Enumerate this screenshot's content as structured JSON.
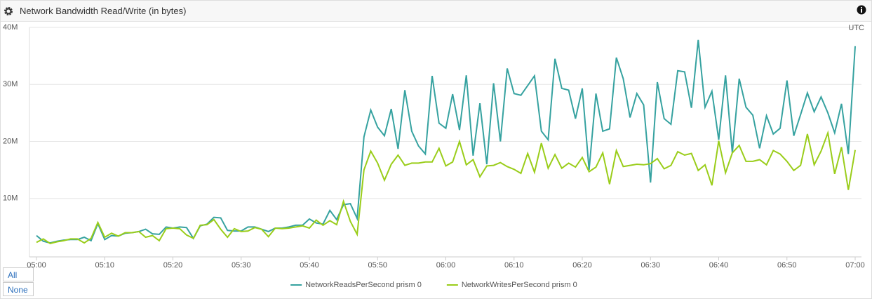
{
  "header": {
    "title": "Network Bandwidth Read/Write (in bytes)"
  },
  "buttons": [
    "All",
    "None"
  ],
  "chart_data": {
    "type": "line",
    "timezone": "UTC",
    "x": [
      "05:00",
      "05:01",
      "05:02",
      "05:03",
      "05:04",
      "05:05",
      "05:06",
      "05:07",
      "05:08",
      "05:09",
      "05:10",
      "05:11",
      "05:12",
      "05:13",
      "05:14",
      "05:15",
      "05:16",
      "05:17",
      "05:18",
      "05:19",
      "05:20",
      "05:21",
      "05:22",
      "05:23",
      "05:24",
      "05:25",
      "05:26",
      "05:27",
      "05:28",
      "05:29",
      "05:30",
      "05:31",
      "05:32",
      "05:33",
      "05:34",
      "05:35",
      "05:36",
      "05:37",
      "05:38",
      "05:39",
      "05:40",
      "05:41",
      "05:42",
      "05:43",
      "05:44",
      "05:45",
      "05:46",
      "05:47",
      "05:48",
      "05:49",
      "05:50",
      "05:51",
      "05:52",
      "05:53",
      "05:54",
      "05:55",
      "05:56",
      "05:57",
      "05:58",
      "05:59",
      "06:00",
      "06:01",
      "06:02",
      "06:03",
      "06:04",
      "06:05",
      "06:06",
      "06:07",
      "06:08",
      "06:09",
      "06:10",
      "06:11",
      "06:12",
      "06:13",
      "06:14",
      "06:15",
      "06:16",
      "06:17",
      "06:18",
      "06:19",
      "06:20",
      "06:21",
      "06:22",
      "06:23",
      "06:24",
      "06:25",
      "06:26",
      "06:27",
      "06:28",
      "06:29",
      "06:30",
      "06:31",
      "06:32",
      "06:33",
      "06:34",
      "06:35",
      "06:36",
      "06:37",
      "06:38",
      "06:39",
      "06:40",
      "06:41",
      "06:42",
      "06:43",
      "06:44",
      "06:45",
      "06:46",
      "06:47",
      "06:48",
      "06:49",
      "06:50",
      "06:51",
      "06:52",
      "06:53",
      "06:54",
      "06:55",
      "06:56",
      "06:57",
      "06:58",
      "06:59",
      "07:00"
    ],
    "series": [
      {
        "name": "NetworkReadsPerSecond prism 0",
        "color": "#36a2a0",
        "values": [
          3500000.0,
          2500000.0,
          2200000.0,
          2500000.0,
          2700000.0,
          2800000.0,
          2800000.0,
          3200000.0,
          2600000.0,
          5600000.0,
          2800000.0,
          3500000.0,
          3400000.0,
          3900000.0,
          4000000.0,
          4200000.0,
          4600000.0,
          3800000.0,
          3700000.0,
          5000000.0,
          4800000.0,
          5000000.0,
          4900000.0,
          3000000.0,
          5200000.0,
          5500000.0,
          6700000.0,
          6600000.0,
          4400000.0,
          4300000.0,
          4300000.0,
          5000000.0,
          5000000.0,
          4600000.0,
          4200000.0,
          4800000.0,
          4800000.0,
          5000000.0,
          5300000.0,
          5300000.0,
          6400000.0,
          5700000.0,
          5500000.0,
          7900000.0,
          6300000.0,
          8900000.0,
          9100000.0,
          6500000.0,
          20800000.0,
          25500000.0,
          22500000.0,
          21000000.0,
          25700000.0,
          18700000.0,
          29000000.0,
          21800000.0,
          19200000.0,
          17800000.0,
          31500000.0,
          23200000.0,
          22300000.0,
          28300000.0,
          22000000.0,
          31600000.0,
          17500000.0,
          26700000.0,
          16000000.0,
          30200000.0,
          20000000.0,
          32800000.0,
          28400000.0,
          28100000.0,
          29800000.0,
          31500000.0,
          21800000.0,
          20300000.0,
          34500000.0,
          29300000.0,
          29000000.0,
          24000000.0,
          29300000.0,
          15000000.0,
          28400000.0,
          21800000.0,
          22200000.0,
          34700000.0,
          31000000.0,
          24200000.0,
          28400000.0,
          26400000.0,
          12800000.0,
          30400000.0,
          24000000.0,
          23000000.0,
          32400000.0,
          32200000.0,
          25900000.0,
          37800000.0,
          26000000.0,
          28800000.0,
          20300000.0,
          31600000.0,
          18000000.0,
          31000000.0,
          26000000.0,
          24600000.0,
          18800000.0,
          24500000.0,
          21300000.0,
          22300000.0,
          30700000.0,
          21000000.0,
          24700000.0,
          28500000.0,
          25200000.0,
          27800000.0,
          25000000.0,
          21500000.0,
          26600000.0,
          17800000.0,
          36700000.0
        ]
      },
      {
        "name": "NetworkWritesPerSecond prism 0",
        "color": "#9acd1a",
        "values": [
          2300000.0,
          2900000.0,
          2100000.0,
          2400000.0,
          2600000.0,
          2900000.0,
          2900000.0,
          2200000.0,
          3000000.0,
          5800000.0,
          3200000.0,
          3900000.0,
          3400000.0,
          4000000.0,
          4000000.0,
          4200000.0,
          3200000.0,
          3500000.0,
          2600000.0,
          4700000.0,
          4800000.0,
          4700000.0,
          3600000.0,
          3000000.0,
          5300000.0,
          5400000.0,
          6300000.0,
          4600000.0,
          3200000.0,
          4700000.0,
          4200000.0,
          4300000.0,
          4900000.0,
          4600000.0,
          3300000.0,
          4800000.0,
          4700000.0,
          4800000.0,
          5000000.0,
          5200000.0,
          4800000.0,
          6200000.0,
          5300000.0,
          6100000.0,
          5400000.0,
          9500000.0,
          6000000.0,
          3700000.0,
          15000000.0,
          18300000.0,
          16200000.0,
          13200000.0,
          16000000.0,
          17600000.0,
          15800000.0,
          16200000.0,
          16200000.0,
          16400000.0,
          16400000.0,
          18800000.0,
          15700000.0,
          16400000.0,
          20000000.0,
          15900000.0,
          16800000.0,
          13800000.0,
          15700000.0,
          15800000.0,
          16300000.0,
          15600000.0,
          15100000.0,
          14400000.0,
          17900000.0,
          14600000.0,
          19700000.0,
          15300000.0,
          17700000.0,
          15300000.0,
          16200000.0,
          15500000.0,
          17200000.0,
          14700000.0,
          15500000.0,
          18000000.0,
          12500000.0,
          18400000.0,
          15600000.0,
          15800000.0,
          16000000.0,
          15900000.0,
          16100000.0,
          17000000.0,
          15200000.0,
          15800000.0,
          18200000.0,
          17600000.0,
          17900000.0,
          14900000.0,
          15900000.0,
          12300000.0,
          20100000.0,
          14500000.0,
          18000000.0,
          19300000.0,
          16500000.0,
          16500000.0,
          16800000.0,
          15900000.0,
          18400000.0,
          17800000.0,
          16500000.0,
          14900000.0,
          15800000.0,
          21300000.0,
          15900000.0,
          18300000.0,
          21500000.0,
          14300000.0,
          19000000.0,
          11500000.0,
          18500000.0
        ]
      }
    ],
    "xlim": [
      "05:00",
      "07:00"
    ],
    "xticks": [
      "05:00",
      "05:10",
      "05:20",
      "05:30",
      "05:40",
      "05:50",
      "06:00",
      "06:10",
      "06:20",
      "06:30",
      "06:40",
      "06:50",
      "07:00"
    ],
    "ylim": [
      0,
      40000000
    ],
    "yticks": [
      {
        "value": 10000000,
        "label": "10M"
      },
      {
        "value": 20000000,
        "label": "20M"
      },
      {
        "value": 30000000,
        "label": "30M"
      },
      {
        "value": 40000000,
        "label": "40M"
      }
    ],
    "grid": true,
    "legend": "bottom"
  }
}
